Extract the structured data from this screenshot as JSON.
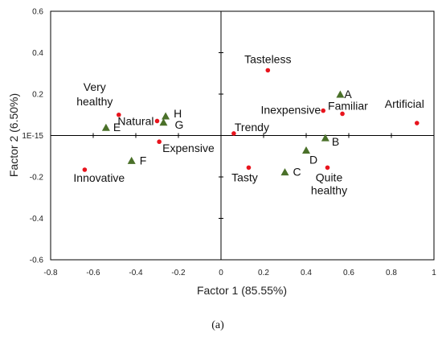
{
  "chart_data": {
    "type": "scatter",
    "xlabel": "Factor 1 (85.55%)",
    "ylabel": "Factor 2 (6.50%)",
    "xlim": [
      -0.8,
      1
    ],
    "ylim": [
      -0.6,
      0.6
    ],
    "x_ticks": [
      {
        "value": -0.8,
        "label": "-0.8"
      },
      {
        "value": -0.6,
        "label": "-0.6"
      },
      {
        "value": -0.4,
        "label": "-0.4"
      },
      {
        "value": -0.2,
        "label": "-0.2"
      },
      {
        "value": 0,
        "label": "0"
      },
      {
        "value": 0.2,
        "label": "0.2"
      },
      {
        "value": 0.4,
        "label": "0.4"
      },
      {
        "value": 0.6,
        "label": "0.6"
      },
      {
        "value": 0.8,
        "label": "0.8"
      },
      {
        "value": 1,
        "label": "1"
      }
    ],
    "y_ticks": [
      {
        "value": 0.6,
        "label": "0.6"
      },
      {
        "value": 0.4,
        "label": "0.4"
      },
      {
        "value": 0.2,
        "label": "0.2"
      },
      {
        "value": 0,
        "label": "1E-15"
      },
      {
        "value": -0.2,
        "label": "-0.2"
      },
      {
        "value": -0.4,
        "label": "-0.4"
      },
      {
        "value": -0.6,
        "label": "-0.6"
      }
    ],
    "grid": false,
    "series": [
      {
        "marker": "circle",
        "color": "#e8141d",
        "points": [
          {
            "label": "Tasteless",
            "x": 0.22,
            "y": 0.315
          },
          {
            "label": "Inexpensive",
            "x": 0.48,
            "y": 0.12
          },
          {
            "label": "Familiar",
            "x": 0.57,
            "y": 0.105
          },
          {
            "label": "Artificial",
            "x": 0.92,
            "y": 0.06
          },
          {
            "label": "Trendy",
            "x": 0.06,
            "y": 0.01
          },
          {
            "label": "Very healthy",
            "x": -0.48,
            "y": 0.1
          },
          {
            "label": "Natural",
            "x": -0.3,
            "y": 0.07
          },
          {
            "label": "Expensive",
            "x": -0.29,
            "y": -0.03
          },
          {
            "label": "Innovative",
            "x": -0.64,
            "y": -0.165
          },
          {
            "label": "Tasty",
            "x": 0.13,
            "y": -0.155
          },
          {
            "label": "Quite healthy",
            "x": 0.5,
            "y": -0.155
          }
        ]
      },
      {
        "marker": "triangle",
        "color": "#4a7029",
        "points": [
          {
            "label": "A",
            "x": 0.56,
            "y": 0.2
          },
          {
            "label": "B",
            "x": 0.49,
            "y": -0.01
          },
          {
            "label": "D",
            "x": 0.4,
            "y": -0.07
          },
          {
            "label": "C",
            "x": 0.3,
            "y": -0.175
          },
          {
            "label": "H",
            "x": -0.26,
            "y": 0.095
          },
          {
            "label": "G",
            "x": -0.27,
            "y": 0.065
          },
          {
            "label": "E",
            "x": -0.54,
            "y": 0.04
          },
          {
            "label": "F",
            "x": -0.42,
            "y": -0.12
          }
        ]
      }
    ]
  },
  "caption": "(a)"
}
